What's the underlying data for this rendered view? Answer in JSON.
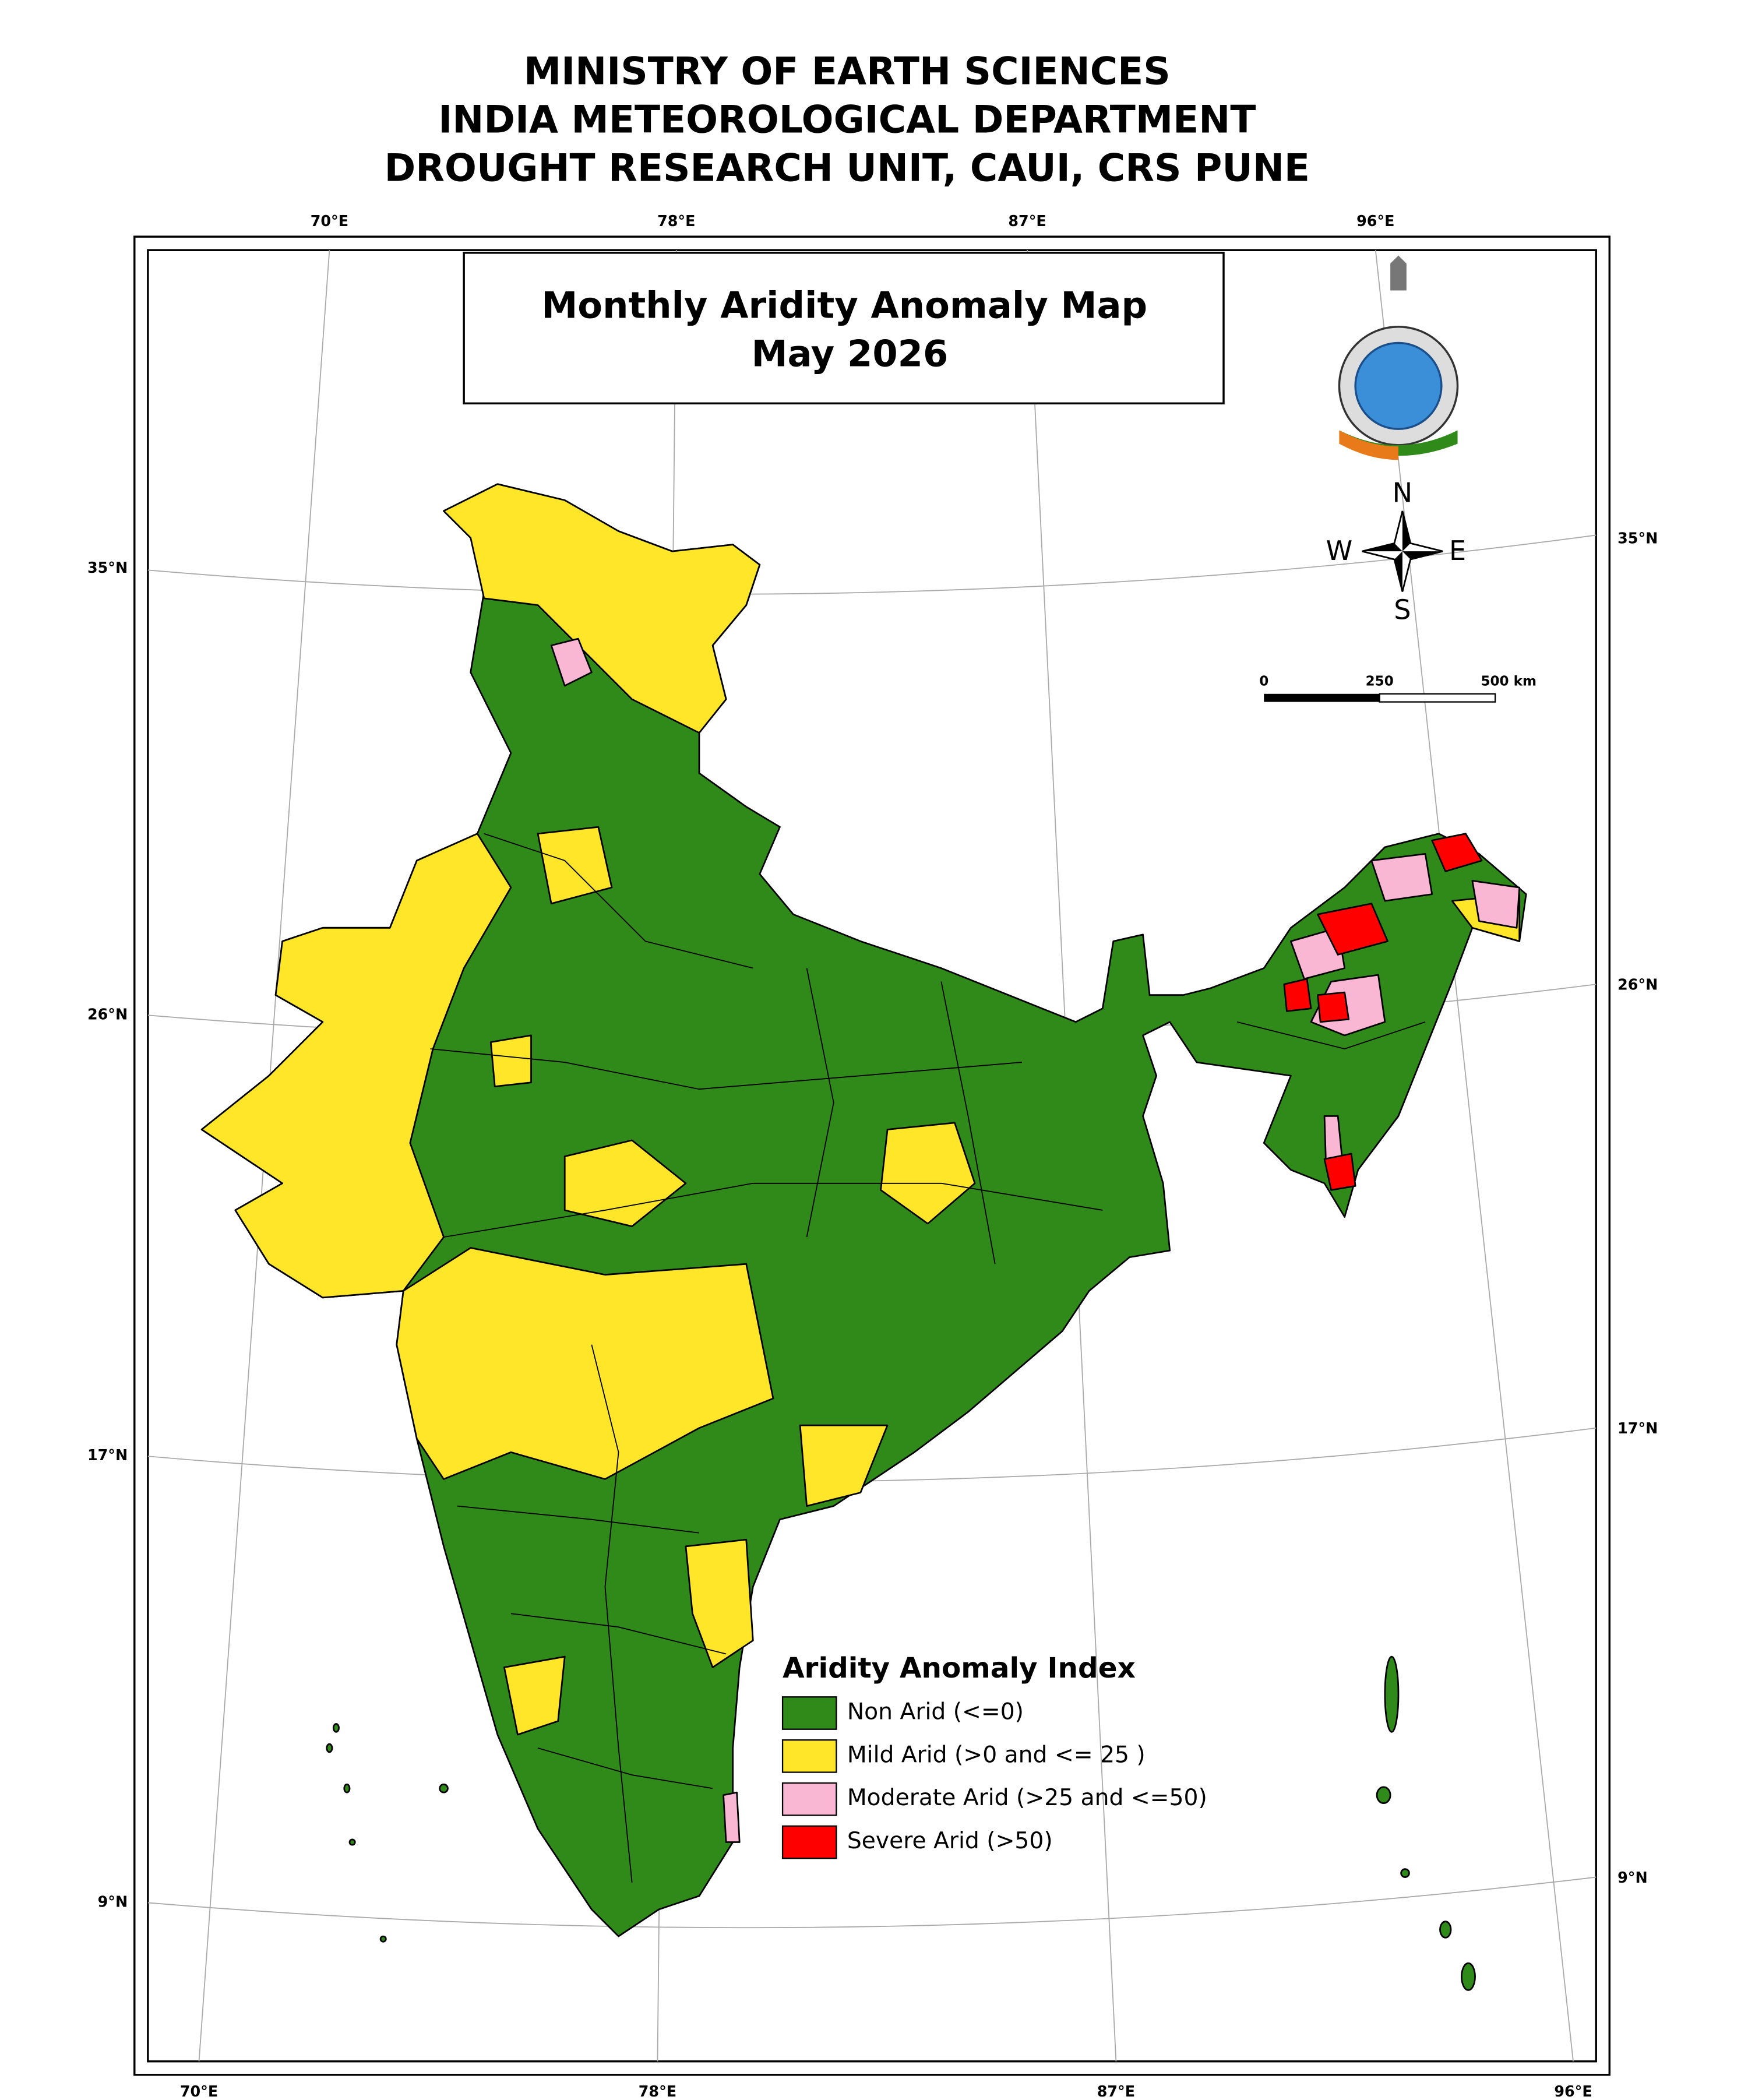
{
  "header": {
    "lines": [
      "MINISTRY OF EARTH SCIENCES",
      "INDIA METEOROLOGICAL DEPARTMENT",
      "DROUGHT RESEARCH UNIT, CAUI, CRS PUNE"
    ]
  },
  "map": {
    "title": "Monthly Aridity Anomaly Map",
    "subtitle": "May  2026",
    "top_longitudes": [
      "70°E",
      "78°E",
      "87°E",
      "96°E"
    ],
    "bottom_longitudes": [
      "70°E",
      "78°E",
      "87°E",
      "96°E"
    ],
    "left_latitudes": [
      "35°N",
      "26°N",
      "17°N",
      "9°N"
    ],
    "right_latitudes": [
      "35°N",
      "26°N",
      "17°N",
      "9°N"
    ],
    "compass": {
      "n": "N",
      "e": "E",
      "s": "S",
      "w": "W"
    },
    "scale": {
      "labels": [
        "0",
        "250",
        "500 km"
      ]
    }
  },
  "legend": {
    "title": "Aridity Anomaly Index",
    "items": [
      {
        "label": "Non Arid (<=0)",
        "color": "#2f8a1a"
      },
      {
        "label": "Mild Arid (>0 and <= 25 )",
        "color": "#ffe629"
      },
      {
        "label": "Moderate Arid (>25 and <=50)",
        "color": "#f9b7d4"
      },
      {
        "label": "Severe Arid (>50)",
        "color": "#ff0000"
      }
    ]
  }
}
